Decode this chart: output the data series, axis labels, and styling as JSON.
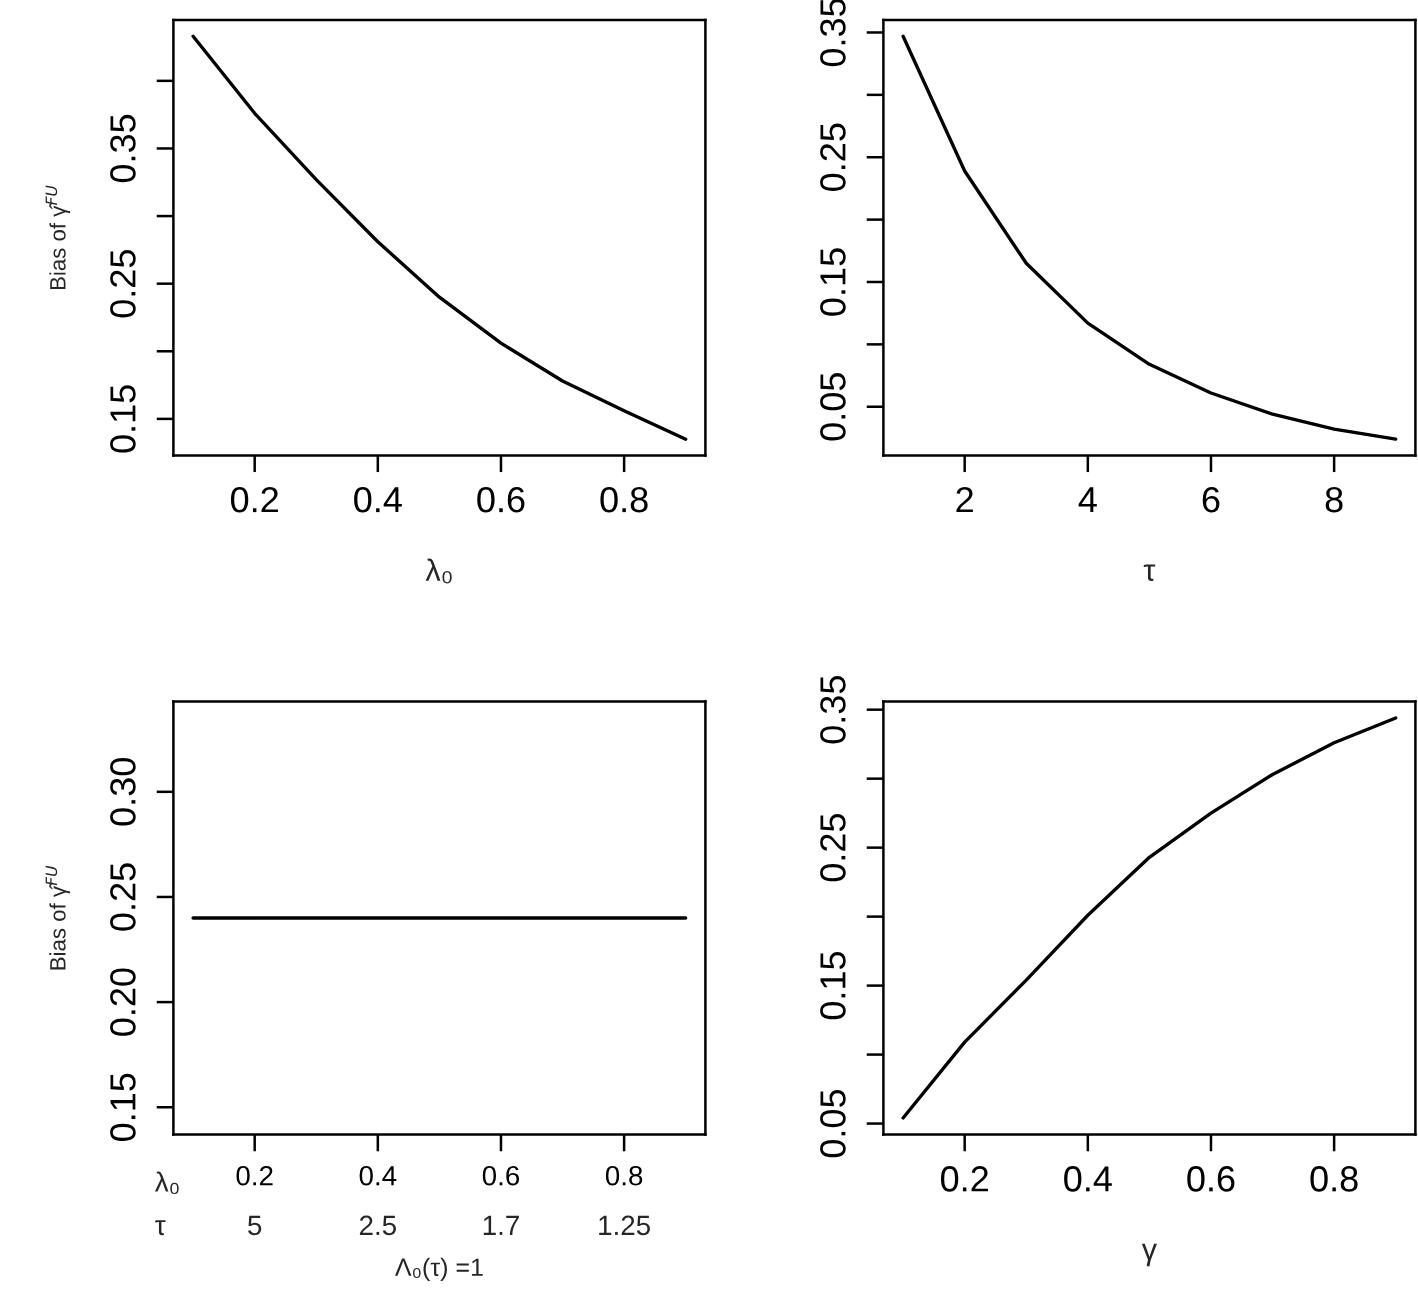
{
  "chart_data": [
    {
      "type": "line",
      "xlabel": "λ₀",
      "ylabel": "Bias of γ̂$^{FU}$",
      "x": [
        0.1,
        0.2,
        0.3,
        0.4,
        0.5,
        0.6,
        0.7,
        0.8,
        0.9
      ],
      "series": [
        {
          "color": "#000000",
          "values": [
            0.433,
            0.376,
            0.327,
            0.281,
            0.24,
            0.206,
            0.178,
            0.156,
            0.135
          ]
        }
      ],
      "xlim": [
        0.068,
        0.932
      ],
      "ylim": [
        0.123,
        0.445
      ],
      "xticks": [
        0.2,
        0.4,
        0.6,
        0.8
      ],
      "yticks": [
        0.15,
        {
          "value": 0.2,
          "label": null
        },
        0.25,
        {
          "value": 0.3,
          "label": null
        },
        0.35,
        {
          "value": 0.4,
          "label": null
        }
      ],
      "grid": false,
      "legend": false,
      "marker": "none",
      "line_style": "solid"
    },
    {
      "type": "line",
      "xlabel": "τ",
      "x": [
        1,
        2,
        3,
        4,
        5,
        6,
        7,
        8,
        9
      ],
      "series": [
        {
          "color": "#000000",
          "values": [
            0.347,
            0.239,
            0.165,
            0.117,
            0.084,
            0.061,
            0.044,
            0.032,
            0.024
          ]
        }
      ],
      "xlim": [
        0.68,
        9.32
      ],
      "ylim": [
        0.011,
        0.36
      ],
      "xticks": [
        2,
        4,
        6,
        8
      ],
      "yticks": [
        0.05,
        {
          "value": 0.1,
          "label": null
        },
        0.15,
        {
          "value": 0.2,
          "label": null
        },
        0.25,
        {
          "value": 0.3,
          "label": null
        },
        0.35
      ],
      "grid": false,
      "legend": false,
      "marker": "none",
      "line_style": "solid"
    },
    {
      "type": "line",
      "xlabel": "Λ₀(τ) =1",
      "ylabel": "Bias of γ̂$^{FU}$",
      "x": [
        0.1,
        0.9
      ],
      "series": [
        {
          "color": "#000000",
          "values": [
            0.24,
            0.24
          ]
        }
      ],
      "xlim": [
        0.068,
        0.932
      ],
      "ylim": [
        0.137,
        0.343
      ],
      "xticks": [
        0.2,
        0.4,
        0.6,
        0.8
      ],
      "yticks": [
        0.15,
        {
          "value": 0.2,
          "label": "0.20"
        },
        0.25,
        {
          "value": 0.3,
          "label": "0.30"
        }
      ],
      "annotations": [
        "λ₀",
        "τ",
        "5",
        "2.5",
        "1.7",
        "1.25"
      ],
      "grid": false,
      "legend": false,
      "marker": "none",
      "line_style": "solid"
    },
    {
      "type": "line",
      "xlabel": "γ",
      "x": [
        0.1,
        0.2,
        0.3,
        0.4,
        0.5,
        0.6,
        0.7,
        0.8,
        0.9
      ],
      "series": [
        {
          "color": "#000000",
          "values": [
            0.054,
            0.109,
            0.154,
            0.201,
            0.243,
            0.275,
            0.303,
            0.326,
            0.344
          ]
        }
      ],
      "xlim": [
        0.068,
        0.932
      ],
      "ylim": [
        0.042,
        0.356
      ],
      "xticks": [
        0.2,
        0.4,
        0.6,
        0.8
      ],
      "yticks": [
        0.05,
        {
          "value": 0.1,
          "label": null
        },
        0.15,
        {
          "value": 0.2,
          "label": null
        },
        0.25,
        {
          "value": 0.3,
          "label": null
        },
        0.35
      ],
      "grid": false,
      "legend": false,
      "marker": "none",
      "line_style": "solid"
    }
  ]
}
